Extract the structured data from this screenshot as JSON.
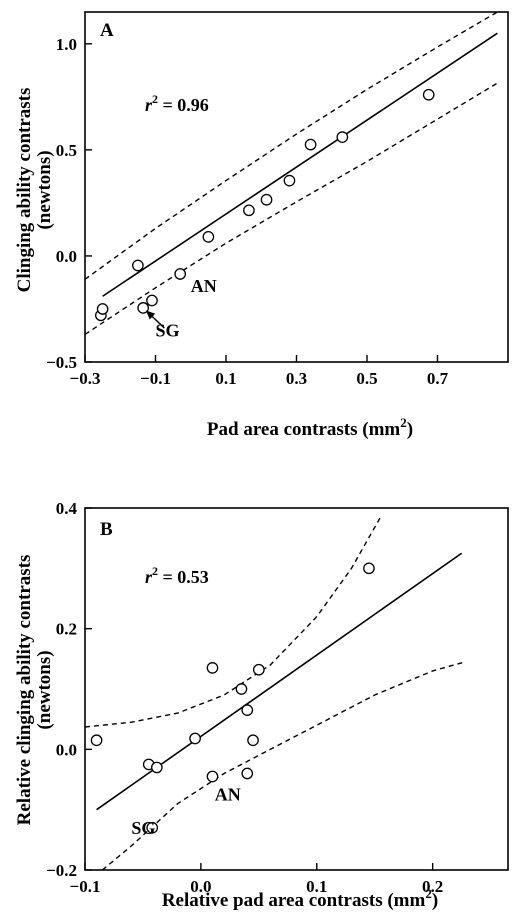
{
  "chart_data": [
    {
      "type": "scatter",
      "panel_label": "A",
      "r2_symbol": "r",
      "r2_exp": "2",
      "r2_value": " = 0.96",
      "xlabel": "Pad area contrasts (mm",
      "xlabel_sup": "2",
      "xlabel_end": ")",
      "ylabel_line1": "Clinging ability contrasts",
      "ylabel_line2": "(newtons)",
      "xlim": [
        -0.3,
        0.9
      ],
      "ylim": [
        -0.5,
        1.15
      ],
      "xticks": [
        -0.3,
        -0.1,
        0.1,
        0.3,
        0.5,
        0.7
      ],
      "xtick_labels": [
        "−0.3",
        "−0.1",
        "0.1",
        "0.3",
        "0.5",
        "0.7"
      ],
      "yticks": [
        -0.5,
        0.0,
        0.5,
        1.0
      ],
      "ytick_labels": [
        "−0.5",
        "0.0",
        "0.5",
        "1.0"
      ],
      "points": [
        {
          "x": -0.255,
          "y": -0.28
        },
        {
          "x": -0.25,
          "y": -0.25
        },
        {
          "x": -0.15,
          "y": -0.045
        },
        {
          "x": -0.135,
          "y": -0.245
        },
        {
          "x": -0.11,
          "y": -0.21
        },
        {
          "x": -0.03,
          "y": -0.085
        },
        {
          "x": 0.05,
          "y": 0.09
        },
        {
          "x": 0.165,
          "y": 0.215
        },
        {
          "x": 0.215,
          "y": 0.265
        },
        {
          "x": 0.28,
          "y": 0.355
        },
        {
          "x": 0.34,
          "y": 0.525
        },
        {
          "x": 0.43,
          "y": 0.56
        },
        {
          "x": 0.675,
          "y": 0.76
        }
      ],
      "fit_line": {
        "x": [
          -0.25,
          0.87
        ],
        "y": [
          -0.19,
          1.05
        ]
      },
      "ci_upper": {
        "x": [
          -0.3,
          -0.1,
          0.1,
          0.3,
          0.5,
          0.7,
          0.87
        ],
        "y": [
          -0.11,
          0.13,
          0.355,
          0.575,
          0.785,
          0.985,
          1.155
        ]
      },
      "ci_lower": {
        "x": [
          -0.3,
          -0.1,
          0.1,
          0.3,
          0.5,
          0.7,
          0.87
        ],
        "y": [
          -0.37,
          -0.15,
          0.06,
          0.255,
          0.445,
          0.645,
          0.815
        ]
      },
      "annotations": [
        {
          "text": "AN",
          "x": 0.0,
          "y": -0.17
        },
        {
          "text": "SG",
          "x": -0.1,
          "y": -0.38
        }
      ],
      "arrow": {
        "from_x": -0.075,
        "from_y": -0.34,
        "to_x": -0.125,
        "to_y": -0.26
      }
    },
    {
      "type": "scatter",
      "panel_label": "B",
      "r2_symbol": "r",
      "r2_exp": "2",
      "r2_value": " = 0.53",
      "xlabel": "Relative pad area contrasts (mm",
      "xlabel_sup": "2",
      "xlabel_end": ")",
      "ylabel_line1": "Relative clinging ability contrasts",
      "ylabel_line2": "(newtons)",
      "xlim": [
        -0.1,
        0.265
      ],
      "ylim": [
        -0.2,
        0.4
      ],
      "xticks": [
        -0.1,
        0.0,
        0.1,
        0.2
      ],
      "xtick_labels": [
        "−0.1",
        "0.0",
        "0.1",
        "0.2"
      ],
      "yticks": [
        -0.2,
        0.0,
        0.2,
        0.4
      ],
      "ytick_labels": [
        "−0.2",
        "0.0",
        "0.2",
        "0.4"
      ],
      "points": [
        {
          "x": -0.09,
          "y": 0.015
        },
        {
          "x": -0.045,
          "y": -0.025
        },
        {
          "x": -0.038,
          "y": -0.03
        },
        {
          "x": -0.042,
          "y": -0.13
        },
        {
          "x": -0.005,
          "y": 0.018
        },
        {
          "x": 0.01,
          "y": 0.135
        },
        {
          "x": 0.01,
          "y": -0.045
        },
        {
          "x": 0.035,
          "y": 0.1
        },
        {
          "x": 0.04,
          "y": 0.065
        },
        {
          "x": 0.04,
          "y": -0.04
        },
        {
          "x": 0.045,
          "y": 0.015
        },
        {
          "x": 0.05,
          "y": 0.132
        },
        {
          "x": 0.145,
          "y": 0.3
        }
      ],
      "fit_line": {
        "x": [
          -0.09,
          0.225
        ],
        "y": [
          -0.1,
          0.325
        ]
      },
      "ci_upper": {
        "x": [
          -0.1,
          -0.06,
          -0.02,
          0.02,
          0.06,
          0.1,
          0.13,
          0.155
        ],
        "y": [
          0.037,
          0.045,
          0.06,
          0.09,
          0.14,
          0.22,
          0.3,
          0.385
        ]
      },
      "ci_lower": {
        "x": [
          -0.085,
          -0.06,
          -0.02,
          0.02,
          0.06,
          0.1,
          0.15,
          0.2,
          0.228
        ],
        "y": [
          -0.2,
          -0.16,
          -0.09,
          -0.04,
          0.0,
          0.04,
          0.09,
          0.13,
          0.145
        ]
      },
      "annotations": [
        {
          "text": "AN",
          "x": 0.012,
          "y": -0.085
        },
        {
          "text": "SG",
          "x": -0.06,
          "y": -0.14
        }
      ]
    }
  ]
}
